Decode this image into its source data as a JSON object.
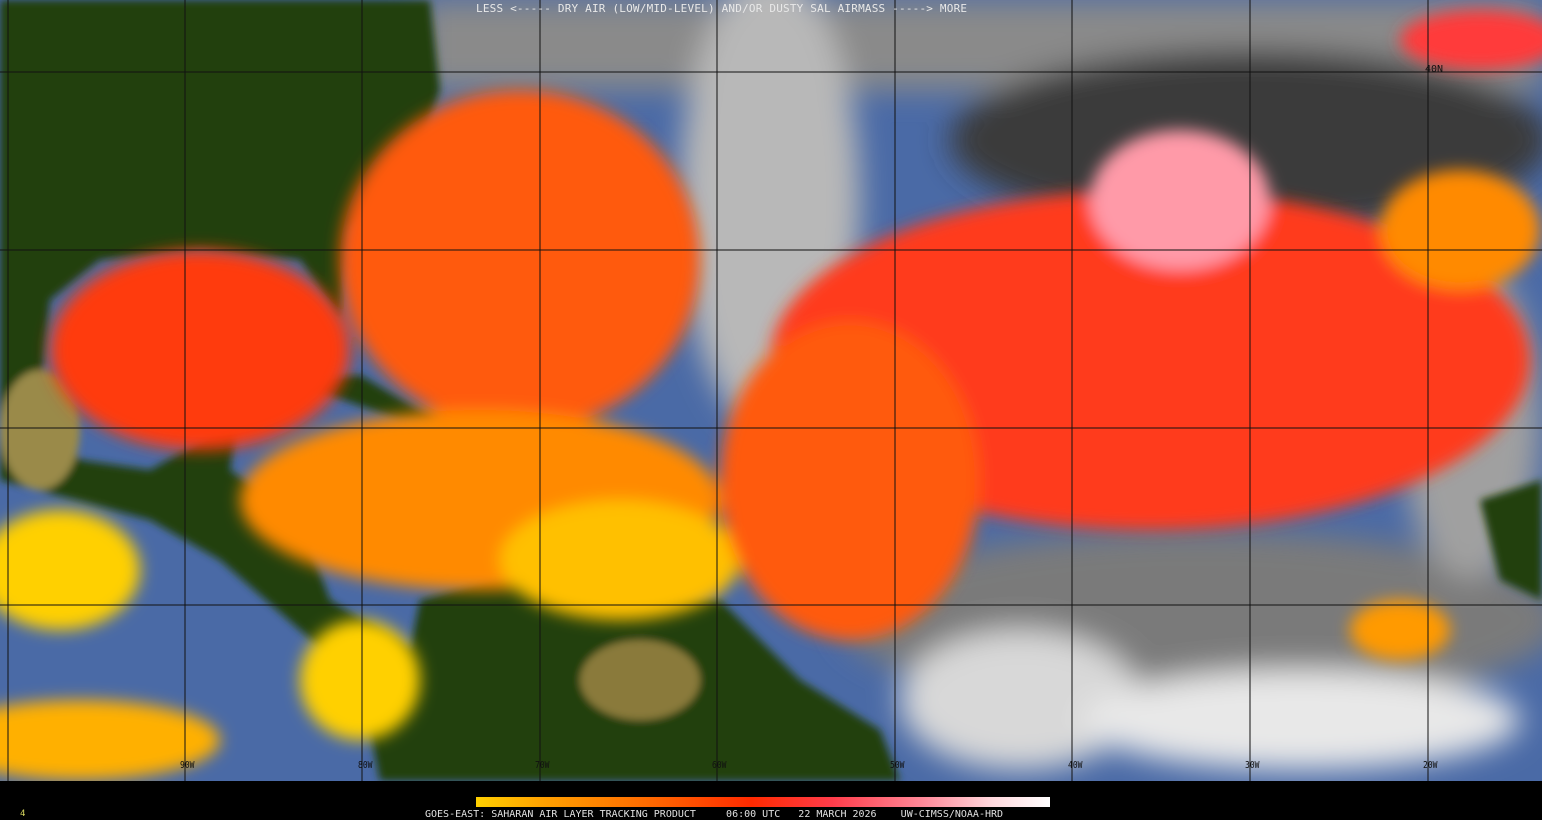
{
  "product": {
    "legend_title": "LESS <----- DRY AIR (LOW/MID-LEVEL) AND/OR DUSTY SAL AIRMASS -----> MORE",
    "satellite_product": "GOES-EAST: SAHARAN AIR LAYER TRACKING PRODUCT",
    "time": "06:00 UTC",
    "date": "22 MARCH 2026",
    "credit": "UW-CIMSS/NOAA-HRD",
    "corner_mark": "4"
  },
  "grid": {
    "longitude_labels": [
      "90W",
      "80W",
      "70W",
      "60W",
      "50W",
      "40W",
      "30W",
      "20W"
    ],
    "latitude_labels": [
      "40N"
    ]
  },
  "colorbar": {
    "low_label": "LESS",
    "high_label": "MORE",
    "colors": [
      "#ffd000",
      "#ffa000",
      "#ff6a00",
      "#ff2a00",
      "#ff3c4a",
      "#ff8a9a",
      "#ffd8de",
      "#ffffff"
    ]
  },
  "colors": {
    "ocean": "#4a6aa6",
    "land": "#24400f",
    "cloud": "#9a9a9a",
    "sal_strong": "#ff2a1a",
    "sal_moderate": "#ff6a10",
    "sal_weak": "#ffd000"
  }
}
